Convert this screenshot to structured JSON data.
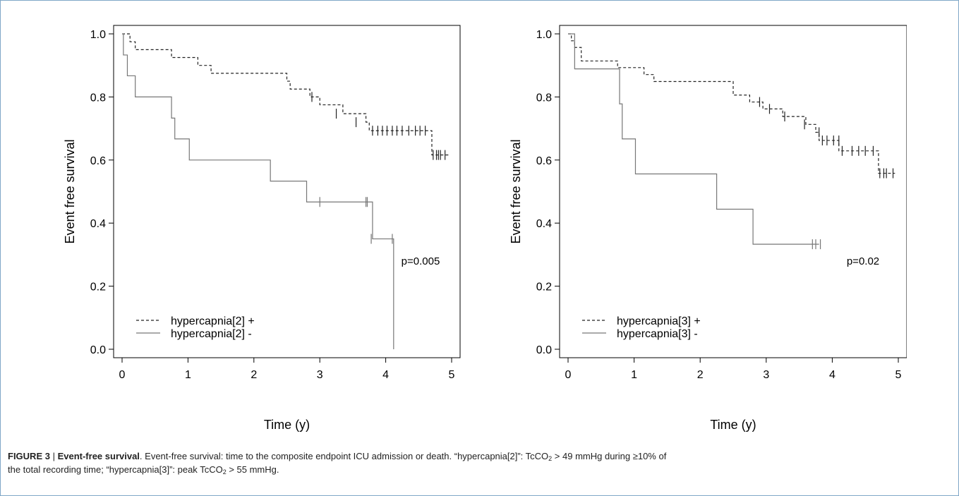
{
  "chart_data": [
    {
      "type": "line",
      "subtype": "kaplan-meier",
      "xlabel": "Time (y)",
      "ylabel": "Event free survival",
      "xlim": [
        0,
        5
      ],
      "ylim": [
        0,
        1
      ],
      "x_ticks": [
        "0",
        "1",
        "2",
        "3",
        "4",
        "5"
      ],
      "y_ticks": [
        "0.0",
        "0.2",
        "0.4",
        "0.6",
        "0.8",
        "1.0"
      ],
      "grid": false,
      "legend_position": "bottom-left",
      "annotation": "p=0.005",
      "series": [
        {
          "name": "hypercapnia[2] +",
          "style": "dashed",
          "color": "#222222",
          "steps": [
            [
              0,
              1.0
            ],
            [
              0.12,
              0.975
            ],
            [
              0.2,
              0.95
            ],
            [
              0.75,
              0.925
            ],
            [
              1.15,
              0.9
            ],
            [
              1.35,
              0.875
            ],
            [
              2.5,
              0.85
            ],
            [
              2.55,
              0.825
            ],
            [
              2.85,
              0.8
            ],
            [
              3.0,
              0.775
            ],
            [
              3.35,
              0.747
            ],
            [
              3.7,
              0.72
            ],
            [
              3.75,
              0.693
            ],
            [
              4.7,
              0.616
            ],
            [
              4.95,
              0.616
            ]
          ],
          "censored": [
            [
              2.88,
              0.8
            ],
            [
              3.25,
              0.747
            ],
            [
              3.55,
              0.72
            ],
            [
              3.8,
              0.693
            ],
            [
              3.88,
              0.693
            ],
            [
              3.95,
              0.693
            ],
            [
              4.02,
              0.693
            ],
            [
              4.1,
              0.693
            ],
            [
              4.17,
              0.693
            ],
            [
              4.25,
              0.693
            ],
            [
              4.35,
              0.693
            ],
            [
              4.45,
              0.693
            ],
            [
              4.52,
              0.693
            ],
            [
              4.6,
              0.693
            ],
            [
              4.72,
              0.616
            ],
            [
              4.77,
              0.616
            ],
            [
              4.8,
              0.616
            ],
            [
              4.83,
              0.616
            ],
            [
              4.9,
              0.616
            ]
          ]
        },
        {
          "name": "hypercapnia[2] -",
          "style": "solid",
          "color": "#777777",
          "steps": [
            [
              0,
              1.0
            ],
            [
              0.02,
              0.933
            ],
            [
              0.08,
              0.867
            ],
            [
              0.2,
              0.8
            ],
            [
              0.75,
              0.733
            ],
            [
              0.8,
              0.667
            ],
            [
              1.02,
              0.6
            ],
            [
              2.25,
              0.533
            ],
            [
              2.8,
              0.467
            ],
            [
              3.8,
              0.35
            ],
            [
              4.12,
              0.0
            ]
          ],
          "censored": [
            [
              3.0,
              0.467
            ],
            [
              3.7,
              0.467
            ],
            [
              3.72,
              0.467
            ],
            [
              3.78,
              0.35
            ],
            [
              4.1,
              0.35
            ]
          ]
        }
      ]
    },
    {
      "type": "line",
      "subtype": "kaplan-meier",
      "xlabel": "Time (y)",
      "ylabel": "Event free survival",
      "xlim": [
        0,
        5
      ],
      "ylim": [
        0,
        1
      ],
      "x_ticks": [
        "0",
        "1",
        "2",
        "3",
        "4",
        "5"
      ],
      "y_ticks": [
        "0.0",
        "0.2",
        "0.4",
        "0.6",
        "0.8",
        "1.0"
      ],
      "grid": false,
      "legend_position": "bottom-left",
      "annotation": "p=0.02",
      "series": [
        {
          "name": "hypercapnia[3] +",
          "style": "dashed",
          "color": "#222222",
          "steps": [
            [
              0,
              1.0
            ],
            [
              0.05,
              0.978
            ],
            [
              0.1,
              0.957
            ],
            [
              0.2,
              0.914
            ],
            [
              0.75,
              0.893
            ],
            [
              1.15,
              0.871
            ],
            [
              1.3,
              0.849
            ],
            [
              2.5,
              0.806
            ],
            [
              2.75,
              0.784
            ],
            [
              2.95,
              0.762
            ],
            [
              3.25,
              0.738
            ],
            [
              3.6,
              0.713
            ],
            [
              3.75,
              0.688
            ],
            [
              3.8,
              0.662
            ],
            [
              4.1,
              0.629
            ],
            [
              4.7,
              0.558
            ],
            [
              4.95,
              0.558
            ]
          ],
          "censored": [
            [
              2.9,
              0.784
            ],
            [
              3.05,
              0.762
            ],
            [
              3.28,
              0.738
            ],
            [
              3.58,
              0.713
            ],
            [
              3.8,
              0.688
            ],
            [
              3.85,
              0.662
            ],
            [
              3.92,
              0.662
            ],
            [
              4.02,
              0.662
            ],
            [
              4.1,
              0.662
            ],
            [
              4.15,
              0.629
            ],
            [
              4.3,
              0.629
            ],
            [
              4.4,
              0.629
            ],
            [
              4.5,
              0.629
            ],
            [
              4.62,
              0.629
            ],
            [
              4.72,
              0.558
            ],
            [
              4.78,
              0.558
            ],
            [
              4.82,
              0.558
            ],
            [
              4.92,
              0.558
            ]
          ]
        },
        {
          "name": "hypercapnia[3] -",
          "style": "solid",
          "color": "#777777",
          "steps": [
            [
              0,
              1.0
            ],
            [
              0.1,
              0.889
            ],
            [
              0.78,
              0.778
            ],
            [
              0.82,
              0.667
            ],
            [
              1.02,
              0.556
            ],
            [
              2.25,
              0.444
            ],
            [
              2.8,
              0.333
            ],
            [
              3.8,
              0.333
            ]
          ],
          "censored": [
            [
              3.7,
              0.333
            ],
            [
              3.75,
              0.333
            ],
            [
              3.82,
              0.333
            ]
          ]
        }
      ]
    }
  ],
  "caption": {
    "label": "FIGURE 3",
    "separator": " | ",
    "bold_title": "Event-free survival",
    "line1_a": ". Event-free survival: time to the composite endpoint ICU admission or death. “hypercapnia[2]”: TcCO",
    "sub1": "2",
    "line1_b": " > 49 mmHg during ≥10% of",
    "line2_a": "the total recording time; “hypercapnia[3]”: peak TcCO",
    "sub2": "2",
    "line2_b": " > 55 mmHg."
  }
}
